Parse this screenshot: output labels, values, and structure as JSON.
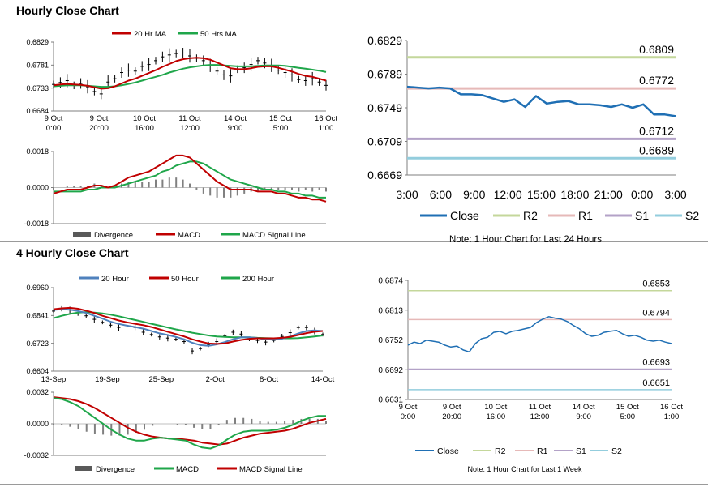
{
  "sections": {
    "hourly_title": "Hourly Close Chart",
    "four_hourly_title": "4 Hourly Close Chart"
  },
  "colors": {
    "close": "#1f6fb4",
    "r2": "#c4d79b",
    "r1": "#e6b9b8",
    "s1": "#b3a2c7",
    "s2": "#93cddd",
    "ma_red": "#c00000",
    "ma_green": "#1fa64a",
    "ma_blue": "#4f81bd",
    "divergence": "#808080"
  },
  "chart_data": [
    {
      "id": "hourly_price_ma",
      "type": "line",
      "legend": [
        "20 Hr MA",
        "50 Hrs MA"
      ],
      "y_ticks": [
        "0.6829",
        "0.6781",
        "0.6733",
        "0.6684"
      ],
      "ylim": [
        0.6684,
        0.6829
      ],
      "x_tick_labels": [
        [
          "9 Oct",
          "0:00"
        ],
        [
          "9 Oct",
          "20:00"
        ],
        [
          "10 Oct",
          "16:00"
        ],
        [
          "11 Oct",
          "12:00"
        ],
        [
          "14 Oct",
          "9:00"
        ],
        [
          "15 Oct",
          "5:00"
        ],
        [
          "16 Oct",
          "1:00"
        ]
      ],
      "close": [
        0.674,
        0.6744,
        0.6748,
        0.6738,
        0.6742,
        0.6735,
        0.6725,
        0.672,
        0.6745,
        0.6752,
        0.6765,
        0.677,
        0.6768,
        0.6778,
        0.6782,
        0.679,
        0.6798,
        0.6802,
        0.6805,
        0.6806,
        0.68,
        0.6795,
        0.679,
        0.678,
        0.6768,
        0.676,
        0.6758,
        0.6772,
        0.6775,
        0.6782,
        0.679,
        0.6785,
        0.678,
        0.677,
        0.6765,
        0.676,
        0.675,
        0.6748,
        0.6752,
        0.6745,
        0.6738
      ],
      "ma20": [
        0.6738,
        0.674,
        0.6741,
        0.674,
        0.6739,
        0.6737,
        0.6734,
        0.6731,
        0.6732,
        0.6736,
        0.6742,
        0.6748,
        0.6752,
        0.6758,
        0.6764,
        0.677,
        0.6777,
        0.6783,
        0.6789,
        0.6793,
        0.6795,
        0.6796,
        0.6795,
        0.6792,
        0.6786,
        0.678,
        0.6774,
        0.6772,
        0.6772,
        0.6774,
        0.6777,
        0.6778,
        0.6778,
        0.6775,
        0.6771,
        0.6767,
        0.6762,
        0.6758,
        0.6756,
        0.6752,
        0.6748
      ],
      "ma50": [
        0.6736,
        0.6737,
        0.6738,
        0.6738,
        0.6738,
        0.6737,
        0.6736,
        0.6735,
        0.6735,
        0.6736,
        0.6738,
        0.6741,
        0.6744,
        0.6748,
        0.6752,
        0.6756,
        0.676,
        0.6765,
        0.6769,
        0.6773,
        0.6776,
        0.6778,
        0.678,
        0.6781,
        0.6781,
        0.678,
        0.6779,
        0.6778,
        0.6778,
        0.6778,
        0.6779,
        0.678,
        0.678,
        0.678,
        0.6779,
        0.6777,
        0.6775,
        0.6773,
        0.6771,
        0.6769,
        0.6766
      ]
    },
    {
      "id": "hourly_macd",
      "type": "line",
      "legend": [
        "Divergence",
        "MACD",
        "MACD Signal Line"
      ],
      "y_ticks": [
        "0.0018",
        "0.0000",
        "-0.0018"
      ],
      "ylim": [
        -0.0018,
        0.0018
      ],
      "macd": [
        -0.0003,
        -0.0002,
        -0.0001,
        -0.0001,
        -0.0001,
        0.0,
        0.0001,
        0.0001,
        0.0,
        0.0001,
        0.0003,
        0.0005,
        0.0006,
        0.0007,
        0.0008,
        0.001,
        0.0012,
        0.0014,
        0.0016,
        0.0016,
        0.0015,
        0.0012,
        0.0009,
        0.0006,
        0.0003,
        0.0001,
        -0.0001,
        -0.0001,
        -0.0001,
        -0.0001,
        -0.0002,
        -0.0002,
        -0.0002,
        -0.0003,
        -0.0003,
        -0.0004,
        -0.0005,
        -0.0005,
        -0.0006,
        -0.0006,
        -0.0007
      ],
      "signal": [
        -0.0002,
        -0.0002,
        -0.0002,
        -0.0002,
        -0.0002,
        -0.0001,
        -0.0001,
        0.0,
        0.0,
        0.0,
        0.0001,
        0.0002,
        0.0003,
        0.0004,
        0.0005,
        0.0006,
        0.0008,
        0.0009,
        0.0011,
        0.0012,
        0.0013,
        0.0013,
        0.0012,
        0.001,
        0.0008,
        0.0006,
        0.0004,
        0.0003,
        0.0002,
        0.0001,
        0.0,
        -0.0001,
        -0.0001,
        -0.0002,
        -0.0002,
        -0.0003,
        -0.0003,
        -0.0004,
        -0.0004,
        -0.0005,
        -0.0005
      ]
    },
    {
      "id": "hourly_24h_close",
      "type": "line",
      "legend": [
        "Close",
        "R2",
        "R1",
        "S1",
        "S2"
      ],
      "note": "Note: 1 Hour Chart for Last 24 Hours",
      "y_ticks": [
        "0.6829",
        "0.6789",
        "0.6749",
        "0.6709",
        "0.6669"
      ],
      "ylim": [
        0.6669,
        0.6829
      ],
      "x_ticks": [
        "3:00",
        "6:00",
        "9:00",
        "12:00",
        "15:00",
        "18:00",
        "21:00",
        "0:00",
        "3:00"
      ],
      "levels": {
        "R2": "0.6809",
        "R1": "0.6772",
        "S1": "0.6712",
        "S2": "0.6689"
      },
      "close": [
        0.6774,
        0.6773,
        0.6772,
        0.6773,
        0.6772,
        0.6765,
        0.6765,
        0.6764,
        0.676,
        0.6756,
        0.6759,
        0.675,
        0.6763,
        0.6754,
        0.6756,
        0.6757,
        0.6753,
        0.6753,
        0.6752,
        0.675,
        0.6753,
        0.6749,
        0.6753,
        0.6741,
        0.6741,
        0.6739
      ]
    },
    {
      "id": "four_hourly_price_ma",
      "type": "line",
      "legend": [
        "20 Hour",
        "50 Hour",
        "200 Hour"
      ],
      "y_ticks": [
        "0.6960",
        "0.6841",
        "0.6723",
        "0.6604"
      ],
      "ylim": [
        0.6604,
        0.696
      ],
      "x_ticks": [
        "13-Sep",
        "19-Sep",
        "25-Sep",
        "2-Oct",
        "8-Oct",
        "14-Oct"
      ],
      "close": [
        0.686,
        0.687,
        0.6865,
        0.6848,
        0.684,
        0.6825,
        0.6812,
        0.68,
        0.679,
        0.6798,
        0.679,
        0.677,
        0.676,
        0.675,
        0.6745,
        0.674,
        0.673,
        0.669,
        0.67,
        0.6718,
        0.673,
        0.6755,
        0.677,
        0.6762,
        0.674,
        0.6735,
        0.6728,
        0.6735,
        0.6752,
        0.6768,
        0.679,
        0.679,
        0.6775,
        0.676
      ],
      "ma20": [
        0.6865,
        0.6868,
        0.6866,
        0.686,
        0.6852,
        0.684,
        0.6828,
        0.6815,
        0.6805,
        0.6798,
        0.6792,
        0.6785,
        0.6775,
        0.6765,
        0.6758,
        0.675,
        0.674,
        0.6725,
        0.6715,
        0.6712,
        0.6718,
        0.6728,
        0.674,
        0.6748,
        0.6748,
        0.6745,
        0.674,
        0.6738,
        0.6742,
        0.6752,
        0.6765,
        0.6775,
        0.6778,
        0.6775
      ],
      "ma50": [
        0.6868,
        0.6872,
        0.6874,
        0.687,
        0.6862,
        0.6852,
        0.684,
        0.683,
        0.682,
        0.6812,
        0.6806,
        0.68,
        0.6792,
        0.6782,
        0.6772,
        0.6762,
        0.6752,
        0.674,
        0.673,
        0.6722,
        0.672,
        0.6722,
        0.673,
        0.6737,
        0.6742,
        0.6744,
        0.6744,
        0.6744,
        0.6746,
        0.675,
        0.6758,
        0.6766,
        0.6772,
        0.6775
      ],
      "ma200": [
        0.683,
        0.684,
        0.6848,
        0.6854,
        0.6856,
        0.6854,
        0.685,
        0.6845,
        0.6838,
        0.683,
        0.6822,
        0.6814,
        0.6806,
        0.6798,
        0.679,
        0.6782,
        0.6775,
        0.6768,
        0.6762,
        0.6756,
        0.6752,
        0.675,
        0.6748,
        0.6748,
        0.6748,
        0.6746,
        0.6745,
        0.6744,
        0.6744,
        0.6744,
        0.6745,
        0.6748,
        0.6752,
        0.6756
      ]
    },
    {
      "id": "four_hourly_macd",
      "type": "line",
      "legend": [
        "Divergence",
        "MACD",
        "MACD Signal Line"
      ],
      "y_ticks": [
        "0.0032",
        "0.0000",
        "-0.0032"
      ],
      "ylim": [
        -0.0032,
        0.0032
      ],
      "macd": [
        0.0026,
        0.0025,
        0.0022,
        0.0018,
        0.0012,
        0.0006,
        0.0,
        -0.0006,
        -0.0011,
        -0.0015,
        -0.0017,
        -0.0017,
        -0.0015,
        -0.0014,
        -0.0015,
        -0.0016,
        -0.0017,
        -0.0021,
        -0.0024,
        -0.0025,
        -0.0022,
        -0.0016,
        -0.0011,
        -0.0008,
        -0.0007,
        -0.0007,
        -0.0007,
        -0.0006,
        -0.0004,
        -0.0001,
        0.0003,
        0.0006,
        0.0008,
        0.0008
      ],
      "signal": [
        0.0027,
        0.0026,
        0.0025,
        0.0023,
        0.002,
        0.0016,
        0.0011,
        0.0006,
        0.0001,
        -0.0004,
        -0.0008,
        -0.0011,
        -0.0013,
        -0.0014,
        -0.0015,
        -0.0015,
        -0.0016,
        -0.0017,
        -0.0019,
        -0.002,
        -0.0021,
        -0.002,
        -0.0017,
        -0.0014,
        -0.0012,
        -0.001,
        -0.0009,
        -0.0008,
        -0.0007,
        -0.0005,
        -0.0002,
        0.0001,
        0.0003,
        0.0005
      ]
    },
    {
      "id": "hourly_week_close",
      "type": "line",
      "legend": [
        "Close",
        "R2",
        "R1",
        "S1",
        "S2"
      ],
      "note": "Note: 1 Hour Chart for Last 1 Week",
      "y_ticks": [
        "0.6874",
        "0.6813",
        "0.6752",
        "0.6692",
        "0.6631"
      ],
      "ylim": [
        0.6631,
        0.6874
      ],
      "x_tick_labels": [
        [
          "9 Oct",
          "0:00"
        ],
        [
          "9 Oct",
          "20:00"
        ],
        [
          "10 Oct",
          "16:00"
        ],
        [
          "11 Oct",
          "12:00"
        ],
        [
          "14 Oct",
          "9:00"
        ],
        [
          "15 Oct",
          "5:00"
        ],
        [
          "16 Oct",
          "1:00"
        ]
      ],
      "levels": {
        "R2": "0.6853",
        "R1": "0.6794",
        "S1": "0.6693",
        "S2": "0.6651"
      },
      "close": [
        0.6742,
        0.6748,
        0.6745,
        0.6752,
        0.675,
        0.6748,
        0.6742,
        0.6738,
        0.674,
        0.6732,
        0.6728,
        0.6745,
        0.6755,
        0.6758,
        0.6768,
        0.677,
        0.6765,
        0.677,
        0.6772,
        0.6775,
        0.6778,
        0.6788,
        0.6795,
        0.68,
        0.6797,
        0.6795,
        0.679,
        0.6782,
        0.6775,
        0.6765,
        0.676,
        0.6762,
        0.6768,
        0.677,
        0.6772,
        0.6765,
        0.676,
        0.6762,
        0.6758,
        0.6752,
        0.675,
        0.6752,
        0.6748,
        0.6745
      ]
    }
  ]
}
